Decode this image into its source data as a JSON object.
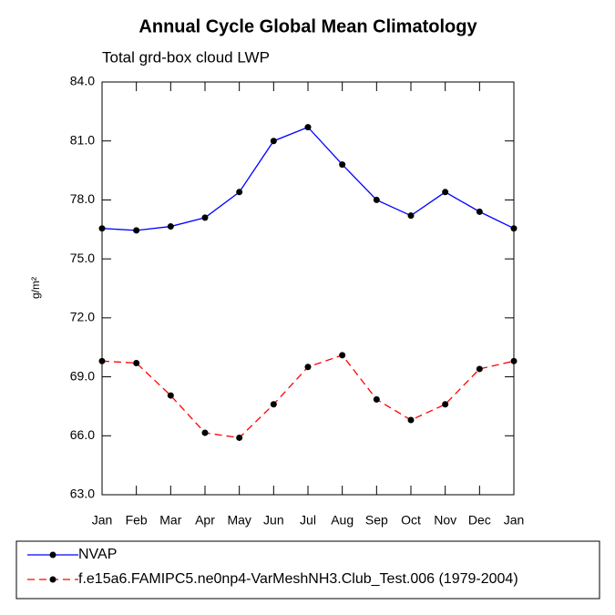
{
  "chart_data": {
    "type": "line",
    "title": "Annual Cycle Global Mean Climatology",
    "subtitle": "Total grd-box cloud LWP",
    "ylabel": "g/m²",
    "categories": [
      "Jan",
      "Feb",
      "Mar",
      "Apr",
      "May",
      "Jun",
      "Jul",
      "Aug",
      "Sep",
      "Oct",
      "Nov",
      "Dec",
      "Jan"
    ],
    "ylim": [
      63,
      84
    ],
    "yticks": [
      {
        "value": 63,
        "label": "63.0"
      },
      {
        "value": 66,
        "label": "66.0"
      },
      {
        "value": 69,
        "label": "69.0"
      },
      {
        "value": 72,
        "label": "72.0"
      },
      {
        "value": 75,
        "label": "75.0"
      },
      {
        "value": 78,
        "label": "78.0"
      },
      {
        "value": 81,
        "label": "81.0"
      },
      {
        "value": 84,
        "label": "84.0"
      }
    ],
    "series": [
      {
        "name": "NVAP",
        "color": "#0000ff",
        "dash": "solid",
        "values": [
          76.55,
          76.45,
          76.65,
          77.1,
          78.4,
          81.0,
          81.7,
          79.8,
          78.0,
          77.2,
          78.4,
          77.4,
          76.55
        ]
      },
      {
        "name": "f.e15a6.FAMIPC5.ne0np4-VarMeshNH3.Club_Test.006 (1979-2004)",
        "color": "#ff0000",
        "dash": "dashed",
        "values": [
          69.8,
          69.7,
          68.05,
          66.15,
          65.9,
          67.6,
          69.5,
          70.1,
          67.85,
          66.8,
          67.6,
          69.4,
          69.8
        ]
      }
    ]
  }
}
